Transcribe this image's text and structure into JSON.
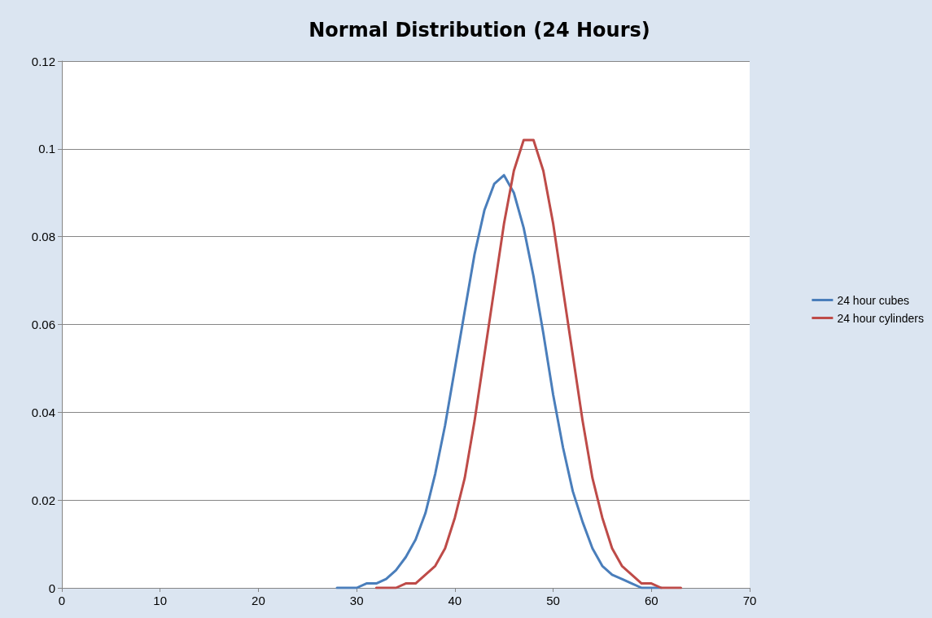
{
  "chart_data": {
    "type": "line",
    "title": "Normal Distribution (24 Hours)",
    "xlim": [
      0,
      70
    ],
    "xticks": [
      0,
      10,
      20,
      30,
      40,
      50,
      60,
      70
    ],
    "ylim": [
      0,
      0.12
    ],
    "yticks": [
      0,
      0.02,
      0.04,
      0.06,
      0.08,
      0.1,
      0.12
    ],
    "grid": "y",
    "legend": "right",
    "marker": "none",
    "line_style": "solid",
    "series": [
      {
        "name": "24 hour cubes",
        "color": "#4a7ebb",
        "x": [
          28,
          29,
          30,
          31,
          32,
          33,
          34,
          35,
          36,
          37,
          38,
          39,
          40,
          41,
          42,
          43,
          44,
          45,
          46,
          47,
          48,
          49,
          50,
          51,
          52,
          53,
          54,
          55,
          56,
          57,
          58,
          59,
          60,
          61
        ],
        "values": [
          0,
          0,
          0,
          0.001,
          0.001,
          0.002,
          0.004,
          0.007,
          0.011,
          0.017,
          0.026,
          0.037,
          0.05,
          0.063,
          0.076,
          0.086,
          0.092,
          0.094,
          0.09,
          0.082,
          0.071,
          0.058,
          0.044,
          0.032,
          0.022,
          0.015,
          0.009,
          0.005,
          0.003,
          0.002,
          0.001,
          0,
          0,
          0
        ]
      },
      {
        "name": "24 hour cylinders",
        "color": "#be4b48",
        "x": [
          32,
          33,
          34,
          35,
          36,
          37,
          38,
          39,
          40,
          41,
          42,
          43,
          44,
          45,
          46,
          47,
          48,
          49,
          50,
          51,
          52,
          53,
          54,
          55,
          56,
          57,
          58,
          59,
          60,
          61,
          62,
          63
        ],
        "values": [
          0,
          0,
          0,
          0.001,
          0.001,
          0.003,
          0.005,
          0.009,
          0.016,
          0.025,
          0.038,
          0.053,
          0.068,
          0.083,
          0.095,
          0.102,
          0.102,
          0.095,
          0.083,
          0.068,
          0.053,
          0.038,
          0.025,
          0.016,
          0.009,
          0.005,
          0.003,
          0.001,
          0.001,
          0,
          0,
          0
        ]
      }
    ]
  }
}
